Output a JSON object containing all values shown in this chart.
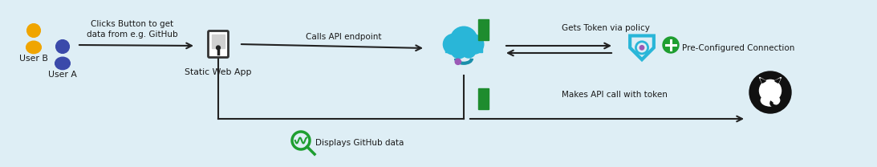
{
  "bg_color": "#deeef5",
  "text_color": "#1a1a1a",
  "arrow_color": "#222222",
  "user_b_color": "#f0a500",
  "user_a_color": "#3b4aaa",
  "cloud_color": "#29b6d8",
  "shield_color": "#29b6d8",
  "green_dark": "#1e8c2e",
  "green_plus": "#1e9e30",
  "github_color": "#111111",
  "purple_dot": "#9b59b6",
  "label_clicks": "Clicks Button to get\ndata from e.g. GitHub",
  "label_calls": "Calls API endpoint",
  "label_token": "Gets Token via policy",
  "label_makes": "Makes API call with token",
  "label_displays": "Displays GitHub data",
  "label_preconf": "Pre-Configured Connection",
  "label_userB": "User B",
  "label_userA": "User A",
  "label_webapp": "Static Web App",
  "figsize": [
    10.93,
    2.08
  ],
  "dpi": 100,
  "xlim": [
    0,
    1093
  ],
  "ylim": [
    208,
    0
  ]
}
